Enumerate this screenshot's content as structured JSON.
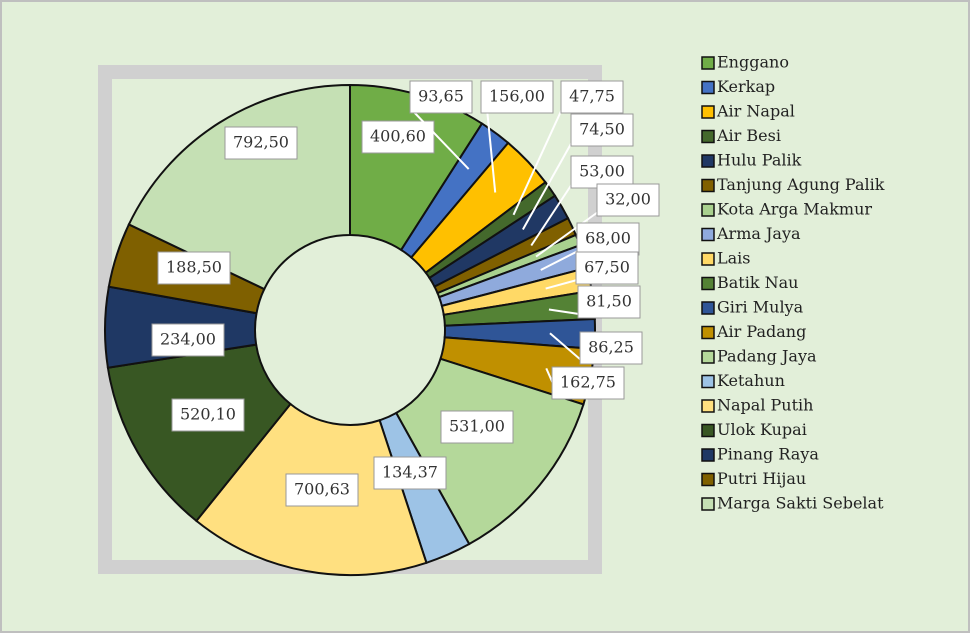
{
  "chart_data": {
    "type": "donut",
    "categories": [
      "Enggano",
      "Kerkap",
      "Air Napal",
      "Air Besi",
      "Hulu Palik",
      "Tanjung Agung Palik",
      "Kota Arga Makmur",
      "Arma Jaya",
      "Lais",
      "Batik Nau",
      "Giri Mulya",
      "Air Padang",
      "Padang  Jaya",
      "Ketahun",
      "Napal Putih",
      "Ulok Kupai",
      "Pinang Raya",
      "Putri Hijau",
      "Marga Sakti Sebelat"
    ],
    "values": [
      400.6,
      93.65,
      156,
      47.75,
      74.5,
      53,
      32,
      68,
      67.5,
      81.5,
      86.25,
      162.75,
      531,
      134.37,
      700.63,
      520.1,
      234,
      188.5,
      792.5
    ],
    "value_labels": [
      "400,60",
      "93,65",
      "156,00",
      "47,75",
      "74,50",
      "53,00",
      "32,00",
      "68,00",
      "67,50",
      "81,50",
      "86,25",
      "162,75",
      "531,00",
      "134,37",
      "700,63",
      "520,10",
      "234,00",
      "188,50",
      "792,50"
    ],
    "colors": [
      "#70ad47",
      "#4472c4",
      "#ffc000",
      "#44692c",
      "#203864",
      "#806000",
      "#a9d18e",
      "#8faadc",
      "#ffd966",
      "#548235",
      "#2f5597",
      "#c09000",
      "#b4d89a",
      "#9dc3e6",
      "#ffe080",
      "#385723",
      "#1f3864",
      "#7f6000",
      "#c5e0b4"
    ],
    "legend": "right"
  }
}
